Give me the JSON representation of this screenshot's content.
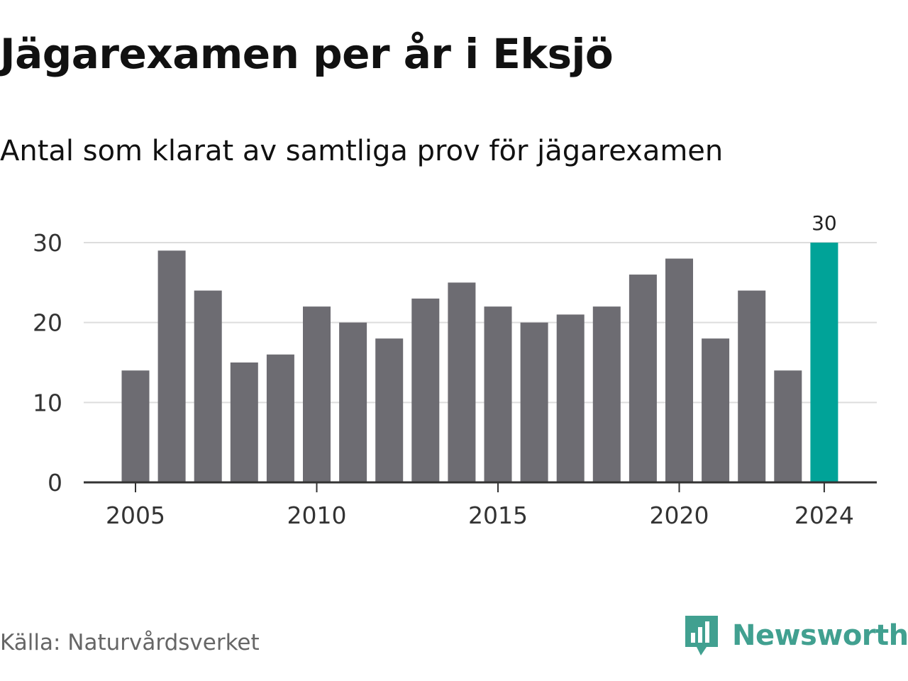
{
  "header": {
    "title": "Jägarexamen per år i Eksjö",
    "subtitle": "Antal som klarat av samtliga prov för jägarexamen"
  },
  "footer": {
    "source": "Källa: Naturvårdsverket",
    "brand_name": "Newsworthy",
    "brand_icon": "newsworthy-logo-icon"
  },
  "colors": {
    "bar": "#6d6c72",
    "highlight": "#00a398",
    "grid": "#dddddd",
    "axis": "#333333",
    "brand": "#41a090"
  },
  "chart_data": {
    "type": "bar",
    "x": [
      2005,
      2006,
      2007,
      2008,
      2009,
      2010,
      2011,
      2012,
      2013,
      2014,
      2015,
      2016,
      2017,
      2018,
      2019,
      2020,
      2021,
      2022,
      2023,
      2024
    ],
    "values": [
      14,
      29,
      24,
      15,
      16,
      22,
      20,
      18,
      23,
      25,
      22,
      20,
      21,
      22,
      26,
      28,
      18,
      24,
      14,
      30
    ],
    "xticks": [
      "2005",
      "2010",
      "2015",
      "2020",
      "2024"
    ],
    "yticks": [
      "0",
      "10",
      "20",
      "30"
    ],
    "ylim": [
      0,
      30
    ],
    "highlight": {
      "x": 2024,
      "label": "30"
    },
    "grid": true
  }
}
